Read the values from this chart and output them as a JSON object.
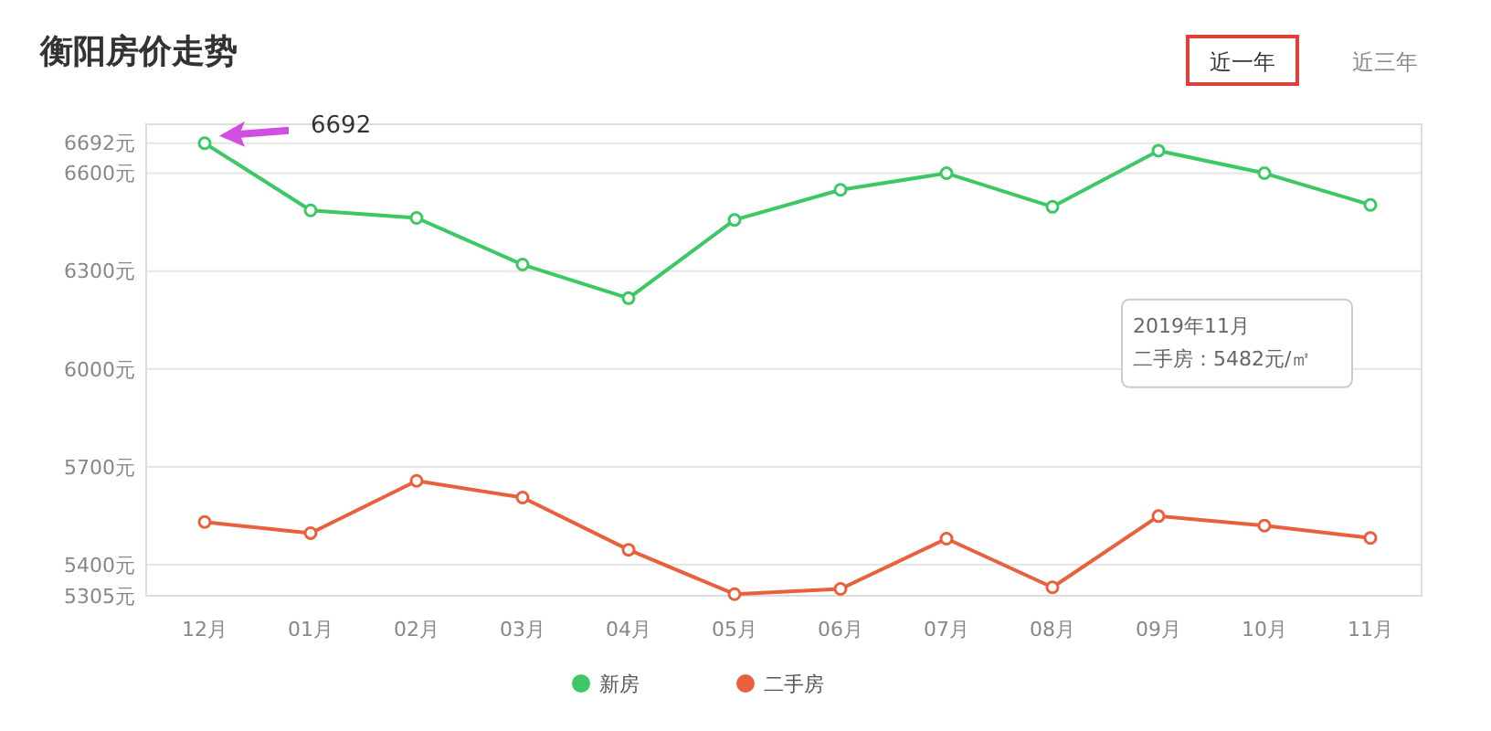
{
  "chart_data": {
    "type": "line",
    "title": "衡阳房价走势",
    "categories": [
      "12月",
      "01月",
      "02月",
      "03月",
      "04月",
      "05月",
      "06月",
      "07月",
      "08月",
      "09月",
      "10月",
      "11月"
    ],
    "series": [
      {
        "name": "新房",
        "color": "#3cc864",
        "values": [
          6692,
          6486,
          6463,
          6320,
          6217,
          6457,
          6549,
          6600,
          6497,
          6669,
          6600,
          6503
        ]
      },
      {
        "name": "二手房",
        "color": "#e8603c",
        "values": [
          5531,
          5497,
          5657,
          5606,
          5446,
          5310,
          5326,
          5480,
          5331,
          5549,
          5520,
          5482
        ]
      }
    ],
    "ylim": [
      5305,
      6750
    ],
    "yticks": [
      {
        "value": 5305,
        "label": "5305元"
      },
      {
        "value": 5400,
        "label": "5400元"
      },
      {
        "value": 5700,
        "label": "5700元"
      },
      {
        "value": 6000,
        "label": "6000元"
      },
      {
        "value": 6300,
        "label": "6300元"
      },
      {
        "value": 6600,
        "label": "6600元"
      },
      {
        "value": 6692,
        "label": "6692元"
      }
    ],
    "grid": "y",
    "legend": "bottom",
    "marker": "circle",
    "line_style": "solid",
    "annotations": [
      "6692",
      "2019年11月",
      "二手房：5482元/㎡",
      "近一年",
      "近三年"
    ]
  }
}
